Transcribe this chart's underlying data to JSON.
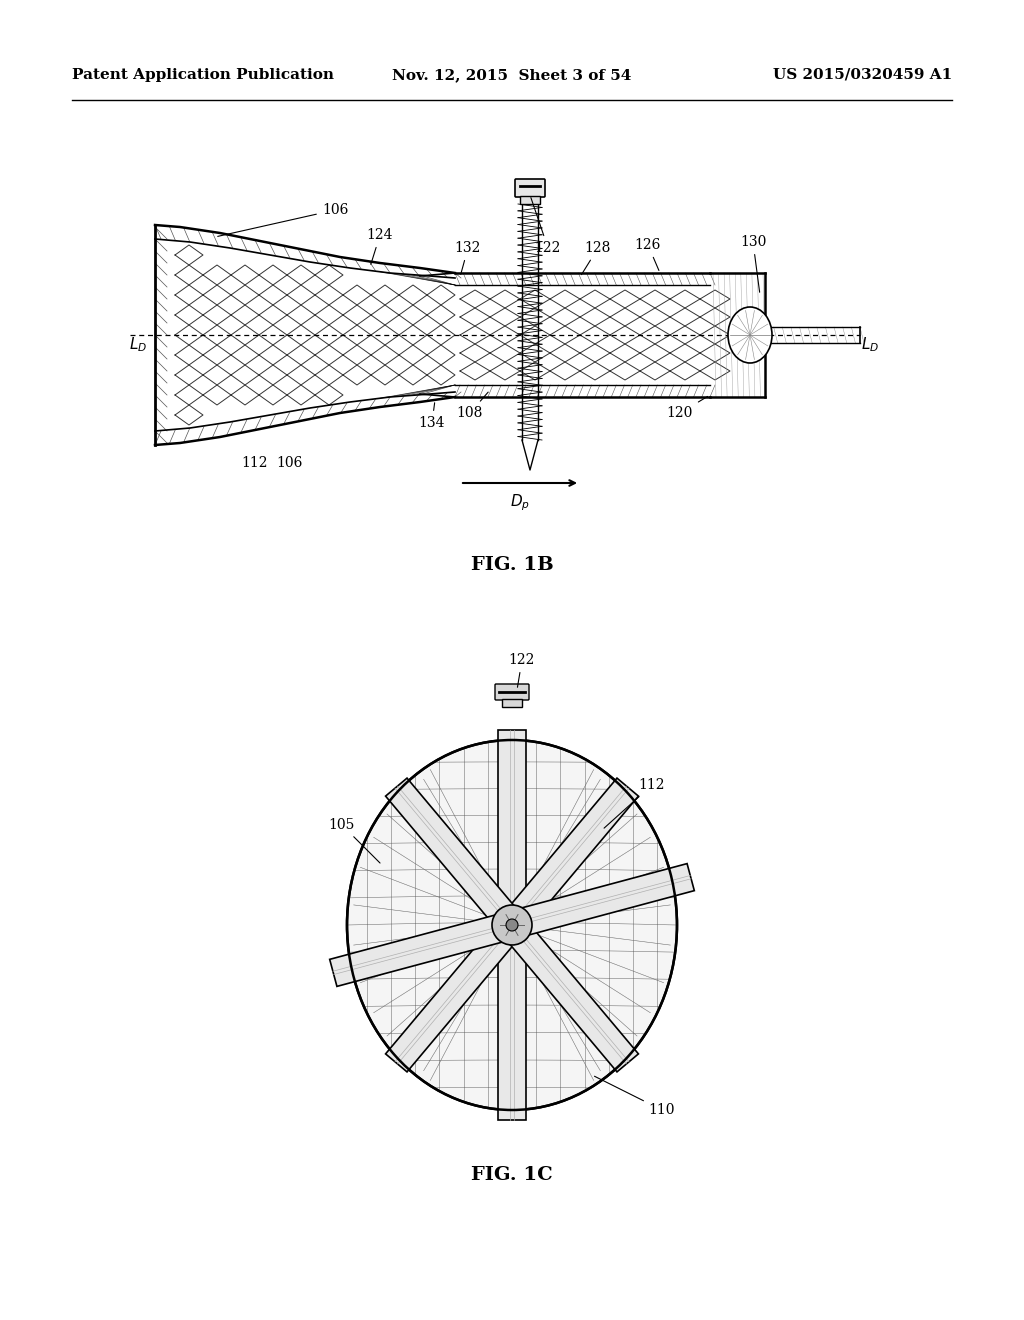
{
  "background_color": "#ffffff",
  "header_left": "Patent Application Publication",
  "header_mid": "Nov. 12, 2015  Sheet 3 of 54",
  "header_right": "US 2015/0320459 A1",
  "header_fontsize": 11,
  "fig1b_caption": "FIG. 1B",
  "fig1c_caption": "FIG. 1C",
  "caption_fontsize": 13,
  "label_fontsize": 10
}
